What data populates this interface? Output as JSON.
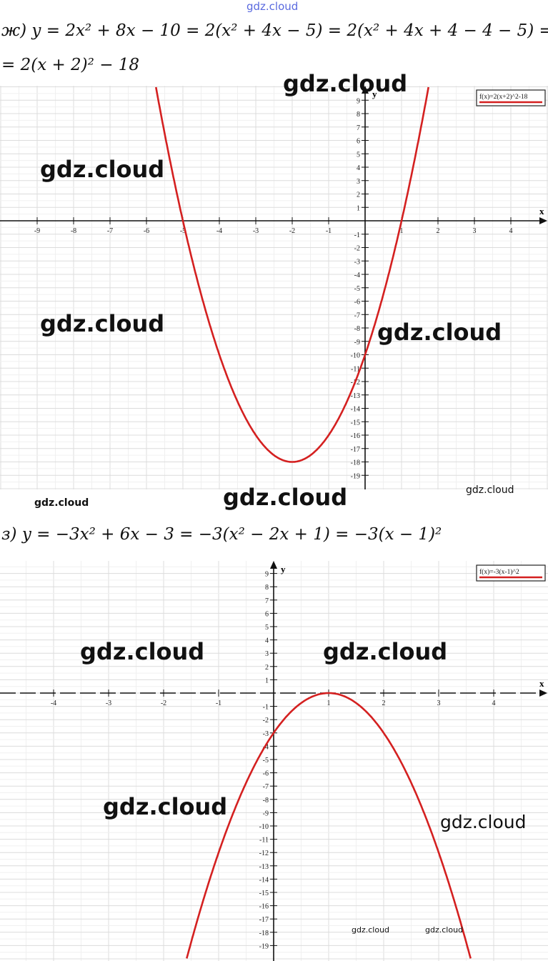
{
  "header_watermark": "gdz.cloud",
  "formulas": {
    "zh_line1": "ж) y = 2x² + 8x − 10 = 2(x² + 4x − 5) = 2(x² + 4x + 4 − 4 − 5) =",
    "zh_line2": "= 2(x + 2)² − 18",
    "z_line1": "з) y = −3x² + 6x − 3 = −3(x² − 2x + 1) = −3(x − 1)²"
  },
  "watermark": "gdz.cloud",
  "chart_data": [
    {
      "type": "line",
      "legend": "f(x)=2(x+2)^2-18",
      "legend_placement": "top-right",
      "xlabel": "x",
      "ylabel": "y",
      "function": {
        "a": 2,
        "h": -2,
        "k": -18
      },
      "xlim": [
        -10,
        5
      ],
      "ylim": [
        -20,
        10
      ],
      "x_ticks": [
        -9,
        -8,
        -7,
        -6,
        -5,
        -4,
        -3,
        -2,
        -1,
        1,
        2,
        3,
        4
      ],
      "y_ticks": [
        9,
        8,
        7,
        6,
        5,
        4,
        3,
        2,
        1,
        -1,
        -2,
        -3,
        -4,
        -5,
        -6,
        -7,
        -8,
        -9,
        -10,
        -11,
        -12,
        -13,
        -14,
        -15,
        -16,
        -17,
        -18,
        -19
      ],
      "grid": true,
      "line_color": "#d42020"
    },
    {
      "type": "line",
      "legend": "f(x)=-3(x-1)^2",
      "legend_placement": "top-right",
      "xlabel": "x",
      "ylabel": "y",
      "function": {
        "a": -3,
        "h": 1,
        "k": 0
      },
      "xlim": [
        -5,
        5
      ],
      "ylim": [
        -20,
        10
      ],
      "x_ticks": [
        -4,
        -3,
        -2,
        -1,
        1,
        2,
        3,
        4
      ],
      "y_ticks": [
        9,
        8,
        7,
        6,
        5,
        4,
        3,
        2,
        1,
        -1,
        -2,
        -3,
        -4,
        -5,
        -6,
        -7,
        -8,
        -9,
        -10,
        -11,
        -12,
        -13,
        -14,
        -15,
        -16,
        -17,
        -18,
        -19
      ],
      "grid": true,
      "line_color": "#d42020"
    }
  ]
}
